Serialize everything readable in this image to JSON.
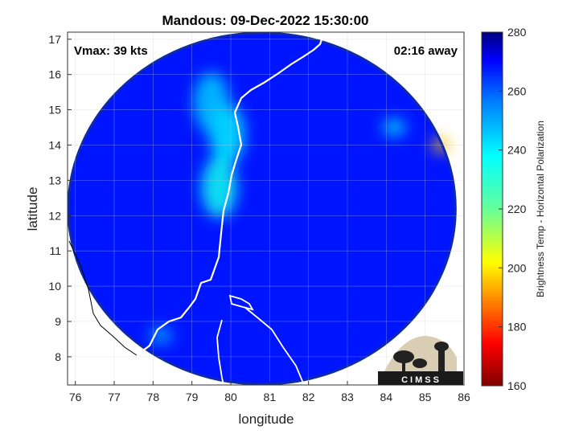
{
  "chart_data": {
    "type": "heatmap",
    "title": "Mandous: 09-Dec-2022 15:30:00",
    "xlabel": "longitude",
    "ylabel": "latitude",
    "xlim": [
      75.8,
      86
    ],
    "ylim": [
      7.2,
      17.2
    ],
    "xticks": [
      "76",
      "77",
      "78",
      "79",
      "80",
      "81",
      "82",
      "83",
      "84",
      "85",
      "86"
    ],
    "yticks": [
      "8",
      "9",
      "10",
      "11",
      "12",
      "13",
      "14",
      "15",
      "16",
      "17"
    ],
    "grid": true,
    "overlay_left": "Vmax: 39 kts",
    "overlay_right": "02:16 away",
    "colorbar": {
      "label": "Brightness Temp - Horizontal Polarization",
      "range": [
        160,
        280
      ],
      "ticks": [
        "280",
        "260",
        "240",
        "220",
        "200",
        "180",
        "160"
      ],
      "colormap": "jet"
    },
    "logo_text": "CIMSS",
    "swath_center": [
      80.8,
      12.2
    ],
    "swath_radius_deg": 5.0,
    "features": [
      {
        "lon": 79.9,
        "lat": 14.3,
        "tb": 240
      },
      {
        "lon": 79.7,
        "lat": 12.8,
        "tb": 235
      },
      {
        "lon": 79.5,
        "lat": 15.2,
        "tb": 245
      },
      {
        "lon": 84.2,
        "lat": 14.5,
        "tb": 240
      },
      {
        "lon": 85.4,
        "lat": 14.0,
        "tb": 195
      },
      {
        "lon": 78.2,
        "lat": 8.6,
        "tb": 248
      }
    ],
    "background_tb": 268
  }
}
